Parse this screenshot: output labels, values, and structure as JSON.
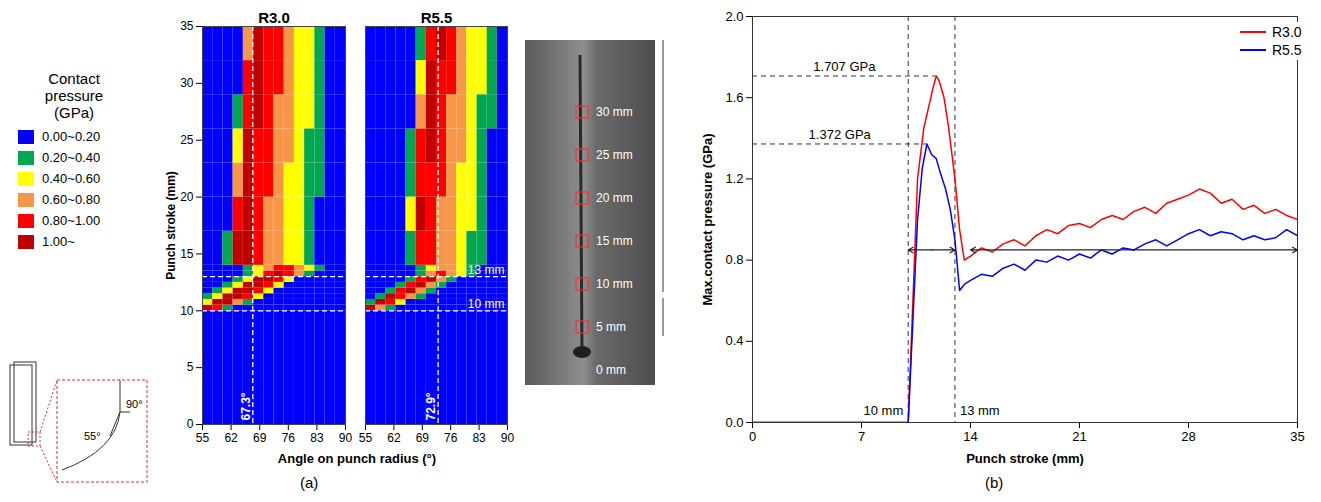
{
  "chart_data": [
    {
      "type": "heatmap",
      "title": "R3.0",
      "xlabel": "Angle on punch radius (°)",
      "ylabel": "Punch stroke (mm)",
      "xlim": [
        55,
        90
      ],
      "xticks": [
        55,
        62,
        69,
        76,
        83,
        90
      ],
      "ylim": [
        0,
        35
      ],
      "yticks": [
        0,
        5,
        10,
        15,
        20,
        25,
        30,
        35
      ],
      "x_edges": [
        55,
        57.5,
        60,
        62.5,
        65,
        67.5,
        70,
        72.5,
        75,
        77.5,
        80,
        82.5,
        85,
        87.5,
        90
      ],
      "y_edges": [
        0,
        10,
        10.5,
        11,
        11.5,
        12,
        12.5,
        13,
        13.5,
        14,
        17,
        20,
        23,
        26,
        29,
        32,
        35
      ],
      "cells": [
        [
          0.1,
          0.1,
          0.1,
          0.1,
          0.1,
          0.1,
          0.1,
          0.1,
          0.1,
          0.1,
          0.1,
          0.1,
          0.1,
          0.1
        ],
        [
          1.1,
          0.9,
          0.3,
          0.1,
          0.1,
          0.1,
          0.1,
          0.1,
          0.1,
          0.1,
          0.1,
          0.1,
          0.1,
          0.1
        ],
        [
          0.5,
          1.1,
          1.1,
          0.7,
          0.3,
          0.1,
          0.1,
          0.1,
          0.1,
          0.1,
          0.1,
          0.1,
          0.1,
          0.1
        ],
        [
          0.3,
          0.5,
          1.1,
          1.1,
          0.9,
          0.5,
          0.1,
          0.1,
          0.1,
          0.1,
          0.1,
          0.1,
          0.1,
          0.1
        ],
        [
          0.1,
          0.3,
          0.5,
          1.1,
          1.1,
          0.9,
          0.5,
          0.1,
          0.1,
          0.1,
          0.1,
          0.1,
          0.1,
          0.1
        ],
        [
          0.1,
          0.1,
          0.3,
          0.5,
          1.1,
          1.1,
          0.9,
          0.5,
          0.1,
          0.1,
          0.1,
          0.1,
          0.1,
          0.1
        ],
        [
          0.1,
          0.1,
          0.1,
          0.3,
          0.5,
          1.1,
          1.1,
          0.9,
          0.5,
          0.1,
          0.1,
          0.1,
          0.1,
          0.1
        ],
        [
          0.1,
          0.1,
          0.1,
          0.1,
          0.3,
          0.5,
          0.9,
          1.1,
          0.9,
          0.7,
          0.3,
          0.1,
          0.1,
          0.1
        ],
        [
          0.1,
          0.1,
          0.1,
          0.1,
          0.3,
          0.5,
          0.7,
          0.9,
          0.9,
          0.7,
          0.5,
          0.3,
          0.1,
          0.1
        ],
        [
          0.1,
          0.1,
          0.3,
          1.1,
          1.1,
          0.9,
          0.7,
          0.7,
          0.5,
          0.5,
          0.3,
          0.1,
          0.1,
          0.1
        ],
        [
          0.1,
          0.1,
          0.1,
          0.9,
          1.1,
          0.9,
          0.7,
          0.7,
          0.5,
          0.5,
          0.3,
          0.1,
          0.1,
          0.1
        ],
        [
          0.1,
          0.1,
          0.1,
          0.7,
          1.1,
          0.9,
          0.9,
          0.7,
          0.5,
          0.5,
          0.3,
          0.3,
          0.1,
          0.1
        ],
        [
          0.1,
          0.1,
          0.1,
          0.5,
          1.1,
          0.9,
          0.9,
          0.7,
          0.7,
          0.5,
          0.3,
          0.3,
          0.1,
          0.1
        ],
        [
          0.1,
          0.1,
          0.1,
          0.3,
          0.9,
          1.1,
          0.9,
          0.7,
          0.7,
          0.5,
          0.5,
          0.3,
          0.1,
          0.1
        ],
        [
          0.1,
          0.1,
          0.1,
          0.1,
          0.9,
          1.1,
          0.9,
          0.9,
          0.7,
          0.5,
          0.5,
          0.3,
          0.1,
          0.1
        ],
        [
          0.1,
          0.1,
          0.1,
          0.1,
          0.7,
          1.1,
          0.9,
          0.9,
          0.7,
          0.5,
          0.5,
          0.3,
          0.1,
          0.1
        ]
      ],
      "vlines": [
        {
          "value": 67.3,
          "label": "67.3°"
        }
      ],
      "hlines": [
        {
          "value": 10
        },
        {
          "value": 13
        }
      ]
    },
    {
      "type": "heatmap",
      "title": "R5.5",
      "tick_labels": "x",
      "xlim": [
        55,
        90
      ],
      "xticks": [
        55,
        62,
        69,
        76,
        83,
        90
      ],
      "ylim": [
        0,
        35
      ],
      "x_edges": [
        55,
        57.5,
        60,
        62.5,
        65,
        67.5,
        70,
        72.5,
        75,
        77.5,
        80,
        82.5,
        85,
        87.5,
        90
      ],
      "y_edges": [
        0,
        10,
        10.5,
        11,
        11.5,
        12,
        12.5,
        13,
        13.5,
        14,
        17,
        20,
        23,
        26,
        29,
        32,
        35
      ],
      "cells": [
        [
          0.1,
          0.1,
          0.1,
          0.1,
          0.1,
          0.1,
          0.1,
          0.1,
          0.1,
          0.1,
          0.1,
          0.1,
          0.1,
          0.1
        ],
        [
          1.1,
          0.7,
          0.3,
          0.1,
          0.1,
          0.1,
          0.1,
          0.1,
          0.1,
          0.1,
          0.1,
          0.1,
          0.1,
          0.1
        ],
        [
          0.3,
          1.1,
          0.9,
          0.5,
          0.1,
          0.1,
          0.1,
          0.1,
          0.1,
          0.1,
          0.1,
          0.1,
          0.1,
          0.1
        ],
        [
          0.1,
          0.3,
          1.1,
          0.9,
          0.7,
          0.3,
          0.1,
          0.1,
          0.1,
          0.1,
          0.1,
          0.1,
          0.1,
          0.1
        ],
        [
          0.1,
          0.1,
          0.3,
          0.9,
          1.1,
          0.7,
          0.3,
          0.1,
          0.1,
          0.1,
          0.1,
          0.1,
          0.1,
          0.1
        ],
        [
          0.1,
          0.1,
          0.1,
          0.3,
          0.9,
          1.1,
          0.7,
          0.3,
          0.1,
          0.1,
          0.1,
          0.1,
          0.1,
          0.1
        ],
        [
          0.1,
          0.1,
          0.1,
          0.1,
          0.3,
          0.9,
          1.1,
          0.7,
          0.3,
          0.1,
          0.1,
          0.1,
          0.1,
          0.1
        ],
        [
          0.1,
          0.1,
          0.1,
          0.1,
          0.1,
          0.3,
          0.7,
          0.9,
          0.7,
          0.5,
          0.3,
          0.1,
          0.1,
          0.1
        ],
        [
          0.1,
          0.1,
          0.1,
          0.1,
          0.1,
          0.3,
          0.5,
          0.7,
          0.7,
          0.5,
          0.3,
          0.1,
          0.1,
          0.1
        ],
        [
          0.1,
          0.1,
          0.1,
          0.1,
          0.3,
          0.9,
          0.9,
          0.7,
          0.7,
          0.5,
          0.3,
          0.3,
          0.1,
          0.1
        ],
        [
          0.1,
          0.1,
          0.1,
          0.1,
          0.5,
          1.1,
          0.9,
          0.7,
          0.7,
          0.5,
          0.5,
          0.3,
          0.1,
          0.1
        ],
        [
          0.1,
          0.1,
          0.1,
          0.1,
          0.3,
          0.9,
          0.9,
          0.9,
          0.7,
          0.5,
          0.5,
          0.3,
          0.1,
          0.1
        ],
        [
          0.1,
          0.1,
          0.1,
          0.1,
          0.3,
          0.9,
          1.1,
          0.9,
          0.7,
          0.7,
          0.5,
          0.3,
          0.1,
          0.1
        ],
        [
          0.1,
          0.1,
          0.1,
          0.1,
          0.1,
          0.7,
          1.1,
          0.9,
          0.7,
          0.7,
          0.5,
          0.3,
          0.3,
          0.1
        ],
        [
          0.1,
          0.1,
          0.1,
          0.1,
          0.1,
          0.5,
          1.1,
          0.9,
          0.9,
          0.7,
          0.5,
          0.5,
          0.3,
          0.1
        ],
        [
          0.1,
          0.1,
          0.1,
          0.1,
          0.1,
          0.3,
          0.9,
          1.1,
          0.9,
          0.7,
          0.5,
          0.5,
          0.3,
          0.1
        ]
      ],
      "vlines": [
        {
          "value": 72.9,
          "label": "72.9°"
        }
      ],
      "hlines": [
        {
          "value": 10,
          "label": "10 mm"
        },
        {
          "value": 13,
          "label": "13 mm"
        }
      ]
    },
    {
      "type": "line",
      "xlabel": "Punch stroke (mm)",
      "ylabel": "Max.contact pressure (GPa)",
      "xlim": [
        0,
        35
      ],
      "xticks": [
        0,
        7,
        14,
        21,
        28,
        35
      ],
      "ylim": [
        0,
        2
      ],
      "yticks": [
        {
          "value": 0,
          "label": "0.0"
        },
        0.4,
        0.8,
        1.2,
        1.6,
        {
          "value": 2,
          "label": "2.0"
        }
      ],
      "legend": "top-right",
      "series": [
        {
          "name": "R3.0",
          "color": "#ff0000",
          "x": [
            0,
            10,
            10.3,
            10.6,
            11,
            11.3,
            11.6,
            11.8,
            12,
            12.3,
            12.6,
            13,
            13.3,
            13.6,
            14,
            14.7,
            15.4,
            16.1,
            16.8,
            17.5,
            18.2,
            18.9,
            19.6,
            20.3,
            21,
            21.7,
            22.4,
            23.1,
            23.8,
            24.5,
            25.2,
            25.9,
            26.6,
            27.3,
            28,
            28.7,
            29.4,
            30.1,
            30.8,
            31.5,
            32.2,
            32.9,
            33.6,
            34.3,
            35
          ],
          "values": [
            0,
            0,
            0.6,
            1.2,
            1.45,
            1.55,
            1.65,
            1.707,
            1.68,
            1.6,
            1.45,
            1.2,
            0.95,
            0.8,
            0.82,
            0.86,
            0.84,
            0.88,
            0.9,
            0.87,
            0.92,
            0.95,
            0.93,
            0.97,
            0.98,
            0.96,
            1.0,
            1.02,
            1.0,
            1.04,
            1.06,
            1.03,
            1.08,
            1.1,
            1.12,
            1.15,
            1.13,
            1.08,
            1.1,
            1.05,
            1.07,
            1.03,
            1.05,
            1.02,
            1.0
          ]
        },
        {
          "name": "R5.5",
          "color": "#0000ff",
          "x": [
            0,
            10,
            10.3,
            10.6,
            10.9,
            11.2,
            11.5,
            11.8,
            12.1,
            12.4,
            12.7,
            13,
            13.3,
            13.6,
            14,
            14.7,
            15.4,
            16.1,
            16.8,
            17.5,
            18.2,
            18.9,
            19.6,
            20.3,
            21,
            21.7,
            22.4,
            23.1,
            23.8,
            24.5,
            25.2,
            25.9,
            26.6,
            27.3,
            28,
            28.7,
            29.4,
            30.1,
            30.8,
            31.5,
            32.2,
            32.9,
            33.6,
            34.3,
            35
          ],
          "values": [
            0,
            0,
            0.5,
            1.0,
            1.25,
            1.372,
            1.32,
            1.3,
            1.22,
            1.15,
            1.05,
            0.9,
            0.65,
            0.68,
            0.7,
            0.73,
            0.72,
            0.76,
            0.78,
            0.75,
            0.8,
            0.79,
            0.82,
            0.8,
            0.83,
            0.81,
            0.85,
            0.83,
            0.86,
            0.85,
            0.88,
            0.9,
            0.87,
            0.9,
            0.93,
            0.95,
            0.92,
            0.94,
            0.93,
            0.9,
            0.92,
            0.9,
            0.91,
            0.95,
            0.92
          ]
        }
      ],
      "peaks": [
        {
          "series": "R3.0",
          "value": 1.707,
          "label": "1.707 GPa"
        },
        {
          "series": "R5.5",
          "value": 1.372,
          "label": "1.372 GPa"
        }
      ],
      "vlines": [
        {
          "value": 10,
          "label": "10 mm"
        },
        {
          "value": 13,
          "label": "13 mm"
        }
      ],
      "spans": [
        {
          "from": 10,
          "to": 13,
          "y": 0.85
        },
        {
          "from": 14,
          "to": 35,
          "y": 0.85
        }
      ]
    }
  ],
  "colorbar": {
    "title": [
      "Contact",
      "pressure",
      "(GPa)"
    ],
    "thresholds": [
      0.2,
      0.4,
      0.6,
      0.8,
      1.0
    ],
    "labels": [
      "0.00~0.20",
      "0.20~0.40",
      "0.40~0.60",
      "0.60~0.80",
      "0.80~1.00",
      "1.00~"
    ],
    "colors": [
      "#0000ff",
      "#00a650",
      "#ffff00",
      "#f79646",
      "#ff0000",
      "#c00000"
    ]
  },
  "diagram": {
    "angles": [
      "90°",
      "55°"
    ]
  },
  "photo": {
    "labels": [
      "0 mm",
      "5 mm",
      "10 mm",
      "15 mm",
      "20 mm",
      "25 mm",
      "30 mm"
    ]
  },
  "panel_labels": [
    "(a)",
    "(b)"
  ]
}
